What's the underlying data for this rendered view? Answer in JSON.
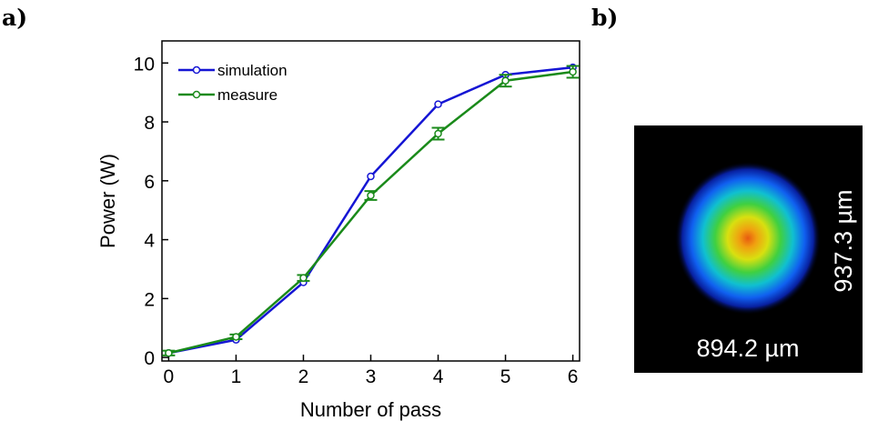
{
  "panel_labels": [
    "a)",
    "b)"
  ],
  "image": {
    "width_label": "894.2 µm",
    "height_label": "937.3 µm"
  },
  "chart_data": {
    "type": "line",
    "x_label": "Number of pass",
    "y_label": "Power (W)",
    "x": [
      0,
      1,
      2,
      3,
      4,
      5,
      6
    ],
    "series": [
      {
        "name": "simulation",
        "color": "#1515d4",
        "values": [
          0.15,
          0.6,
          2.55,
          6.15,
          8.6,
          9.6,
          9.85
        ]
      },
      {
        "name": "measure",
        "color": "#1a8a1a",
        "values": [
          0.15,
          0.7,
          2.7,
          5.5,
          7.6,
          9.4,
          9.7
        ],
        "errors": [
          0.08,
          0.08,
          0.1,
          0.15,
          0.2,
          0.2,
          0.2
        ]
      }
    ],
    "xlim": [
      -0.1,
      6.1
    ],
    "ylim": [
      -0.12,
      10.75
    ],
    "xticks": [
      0,
      1,
      2,
      3,
      4,
      5,
      6
    ],
    "yticks": [
      0,
      2,
      4,
      6,
      8,
      10
    ],
    "legend": "top-left"
  }
}
